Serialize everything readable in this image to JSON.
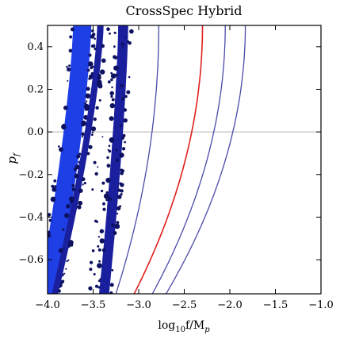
{
  "chart_data": {
    "type": "scatter",
    "title": "CrossSpec Hybrid",
    "xlabel": "log₁₀f/Mₚ",
    "xlabel_main": "log",
    "xlabel_sub": "10",
    "xlabel_rest": "f/M",
    "xlabel_sub2": "p",
    "ylabel_main": "p",
    "ylabel_sub": "f",
    "xlim": [
      -4.0,
      -1.0
    ],
    "ylim": [
      -0.76,
      0.5
    ],
    "xticks": [
      -4.0,
      -3.5,
      -3.0,
      -2.5,
      -2.0,
      -1.5,
      -1.0
    ],
    "xtick_labels": [
      "−4.0",
      "−3.5",
      "−3.0",
      "−2.5",
      "−2.0",
      "−1.5",
      "−1.0"
    ],
    "yticks": [
      0.4,
      0.2,
      0.0,
      -0.2,
      -0.4,
      -0.6
    ],
    "ytick_labels": [
      "0.4",
      "0.2",
      "0.0",
      "−0.2",
      "−0.4",
      "−0.6"
    ],
    "hline_y": 0.0,
    "grid": false,
    "legend": "none",
    "colors": {
      "bright_band": "#1f3fe6",
      "dark_band": "#1a1f9e",
      "navy_dots": "#0d1160",
      "contour": "#4a4aa8",
      "red_curve": "#e0201c",
      "zero_line": "#b0b0b0"
    },
    "bands": [
      {
        "name": "bright",
        "color": "#1f3fe6",
        "x_at_top": -3.62,
        "x_at_bottom": -4.0,
        "width": 0.2
      },
      {
        "name": "dark-1",
        "color": "#1a1f9e",
        "x_at_top": -3.42,
        "x_at_bottom": -3.92,
        "width": 0.07
      },
      {
        "name": "dark-2",
        "color": "#1a1f9e",
        "x_at_top": -3.17,
        "x_at_bottom": -3.38,
        "width": 0.11
      }
    ],
    "curves": [
      {
        "name": "contour-1",
        "color": "#4a4aa8",
        "x_at_top": -2.78,
        "x_at_bottom": -3.25,
        "curv": 2.0
      },
      {
        "name": "red-curve",
        "color": "#e0201c",
        "x_at_top": -2.3,
        "x_at_bottom": -3.05,
        "curv": 2.0
      },
      {
        "name": "contour-2",
        "color": "#4a4aa8",
        "x_at_top": -2.05,
        "x_at_bottom": -2.85,
        "curv": 2.0
      },
      {
        "name": "contour-3",
        "color": "#4a4aa8",
        "x_at_top": -1.83,
        "x_at_bottom": -2.7,
        "curv": 2.0
      }
    ]
  }
}
